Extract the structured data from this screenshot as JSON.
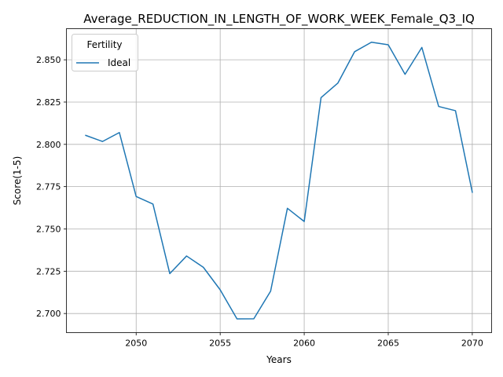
{
  "chart_data": {
    "type": "line",
    "title": "Average_REDUCTION_IN_LENGTH_OF_WORK_WEEK_Female_Q3_IQ",
    "xlabel": "Years",
    "ylabel": "Score(1-5)",
    "xlim": [
      2045.85,
      2071.15
    ],
    "ylim": [
      2.6887,
      2.8684
    ],
    "xticks": [
      2050,
      2055,
      2060,
      2065,
      2070
    ],
    "yticks": [
      2.7,
      2.725,
      2.75,
      2.775,
      2.8,
      2.825,
      2.85
    ],
    "grid": true,
    "legend": {
      "title": "Fertility",
      "placement": "top-left"
    },
    "series": [
      {
        "name": "Ideal",
        "color": "#1f77b4",
        "x": [
          2047,
          2048,
          2049,
          2050,
          2051,
          2052,
          2053,
          2054,
          2055,
          2056,
          2057,
          2058,
          2059,
          2060,
          2061,
          2062,
          2063,
          2064,
          2065,
          2066,
          2067,
          2068,
          2069,
          2070
        ],
        "values": [
          2.8053,
          2.8017,
          2.807,
          2.7692,
          2.7647,
          2.7236,
          2.734,
          2.7273,
          2.714,
          2.6968,
          2.6969,
          2.7132,
          2.7622,
          2.7544,
          2.8276,
          2.8362,
          2.8548,
          2.8604,
          2.8589,
          2.8414,
          2.8573,
          2.8224,
          2.8199,
          2.7717
        ]
      }
    ]
  }
}
